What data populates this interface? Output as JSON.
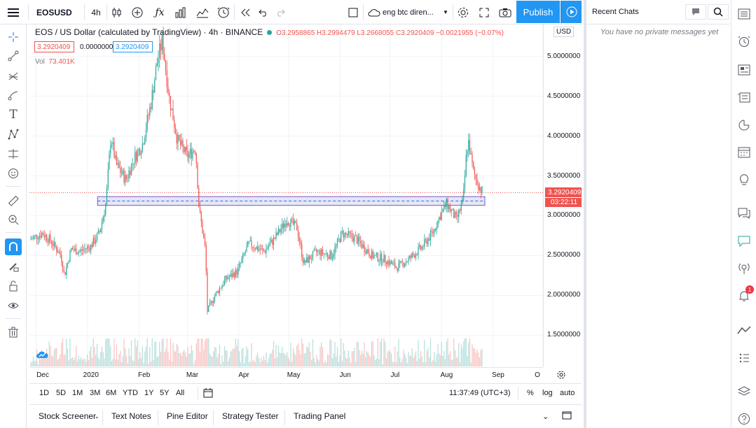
{
  "toolbar": {
    "menu_icon": "hamburger-icon",
    "symbol": "EOSUSD",
    "interval": "4h",
    "layout_name": "eng btc diren...",
    "publish_label": "Publish"
  },
  "legend": {
    "title": "EOS / US Dollar (calculated by TradingView) · 4h · BINANCE",
    "ohlc": "O3.2958865 H3.2994479 L3.2668055 C3.2920409 −0.0021955 (−0.07%)",
    "price_box_1": "3.2920409",
    "price_box_2": "0.0000000",
    "price_box_3": "3.2920409",
    "vol_label": "Vol",
    "vol_value": "73.401K"
  },
  "price_axis": {
    "currency": "USD",
    "ticks": [
      "5.0000000",
      "4.5000000",
      "4.0000000",
      "3.5000000",
      "3.0000000",
      "2.5000000",
      "2.0000000",
      "1.5000000"
    ],
    "last_price": "3.2920409",
    "countdown": "03:22:11"
  },
  "time_axis": {
    "ticks": [
      "Dec",
      "2020",
      "Feb",
      "Mar",
      "Apr",
      "May",
      "Jun",
      "Jul",
      "Aug",
      "Sep",
      "O"
    ]
  },
  "range_bar": {
    "ranges": [
      "1D",
      "5D",
      "1M",
      "3M",
      "6M",
      "YTD",
      "1Y",
      "5Y",
      "All"
    ],
    "clock": "11:37:49 (UTC+3)",
    "percent": "%",
    "log": "log",
    "auto": "auto"
  },
  "bottom_bar": {
    "tabs": [
      "Stock Screener",
      "Text Notes",
      "Pine Editor",
      "Strategy Tester",
      "Trading Panel"
    ]
  },
  "chat": {
    "title": "Recent Chats",
    "empty_message": "You have no private messages yet"
  },
  "right_bar": {
    "alert_count": "1"
  },
  "colors": {
    "up": "#26a69a",
    "down": "#ef5350",
    "accent": "#2196f3",
    "zone": "#c5cae9"
  },
  "chart_data": {
    "type": "candlestick",
    "symbol": "EOSUSD",
    "interval": "4h",
    "exchange": "BINANCE",
    "y_range": [
      1.1,
      5.4
    ],
    "x_range": [
      "2019-11-27",
      "2020-10-01"
    ],
    "close_path": [
      [
        "2019-11-27",
        2.7
      ],
      [
        "2019-12-05",
        2.78
      ],
      [
        "2019-12-10",
        2.68
      ],
      [
        "2019-12-16",
        2.5
      ],
      [
        "2019-12-18",
        2.25
      ],
      [
        "2019-12-22",
        2.58
      ],
      [
        "2019-12-27",
        2.55
      ],
      [
        "2020-01-03",
        2.62
      ],
      [
        "2020-01-08",
        2.78
      ],
      [
        "2020-01-12",
        3.15
      ],
      [
        "2020-01-15",
        4.0
      ],
      [
        "2020-01-18",
        3.65
      ],
      [
        "2020-01-24",
        3.45
      ],
      [
        "2020-01-29",
        3.72
      ],
      [
        "2020-02-03",
        3.9
      ],
      [
        "2020-02-08",
        4.4
      ],
      [
        "2020-02-12",
        4.95
      ],
      [
        "2020-02-15",
        5.2
      ],
      [
        "2020-02-19",
        4.5
      ],
      [
        "2020-02-24",
        3.95
      ],
      [
        "2020-03-01",
        3.75
      ],
      [
        "2020-03-06",
        3.85
      ],
      [
        "2020-03-08",
        3.1
      ],
      [
        "2020-03-12",
        2.55
      ],
      [
        "2020-03-13",
        1.8
      ],
      [
        "2020-03-17",
        1.98
      ],
      [
        "2020-03-24",
        2.2
      ],
      [
        "2020-03-31",
        2.3
      ],
      [
        "2020-04-07",
        2.65
      ],
      [
        "2020-04-16",
        2.55
      ],
      [
        "2020-04-22",
        2.7
      ],
      [
        "2020-04-30",
        2.95
      ],
      [
        "2020-05-06",
        2.85
      ],
      [
        "2020-05-10",
        2.4
      ],
      [
        "2020-05-18",
        2.55
      ],
      [
        "2020-05-27",
        2.5
      ],
      [
        "2020-06-02",
        2.78
      ],
      [
        "2020-06-10",
        2.72
      ],
      [
        "2020-06-20",
        2.5
      ],
      [
        "2020-06-28",
        2.45
      ],
      [
        "2020-07-05",
        2.35
      ],
      [
        "2020-07-12",
        2.45
      ],
      [
        "2020-07-20",
        2.6
      ],
      [
        "2020-07-27",
        2.8
      ],
      [
        "2020-07-31",
        3.0
      ],
      [
        "2020-08-04",
        3.15
      ],
      [
        "2020-08-10",
        2.95
      ],
      [
        "2020-08-14",
        3.2
      ],
      [
        "2020-08-16",
        3.8
      ],
      [
        "2020-08-17",
        3.95
      ],
      [
        "2020-08-20",
        3.55
      ],
      [
        "2020-08-24",
        3.35
      ],
      [
        "2020-08-26",
        3.29
      ]
    ],
    "support_zone": {
      "top": 3.24,
      "bottom": 3.13,
      "from": "2020-01-07",
      "to": "2020-08-27"
    },
    "last_price": 3.2920409,
    "last_price_line": 3.29
  }
}
